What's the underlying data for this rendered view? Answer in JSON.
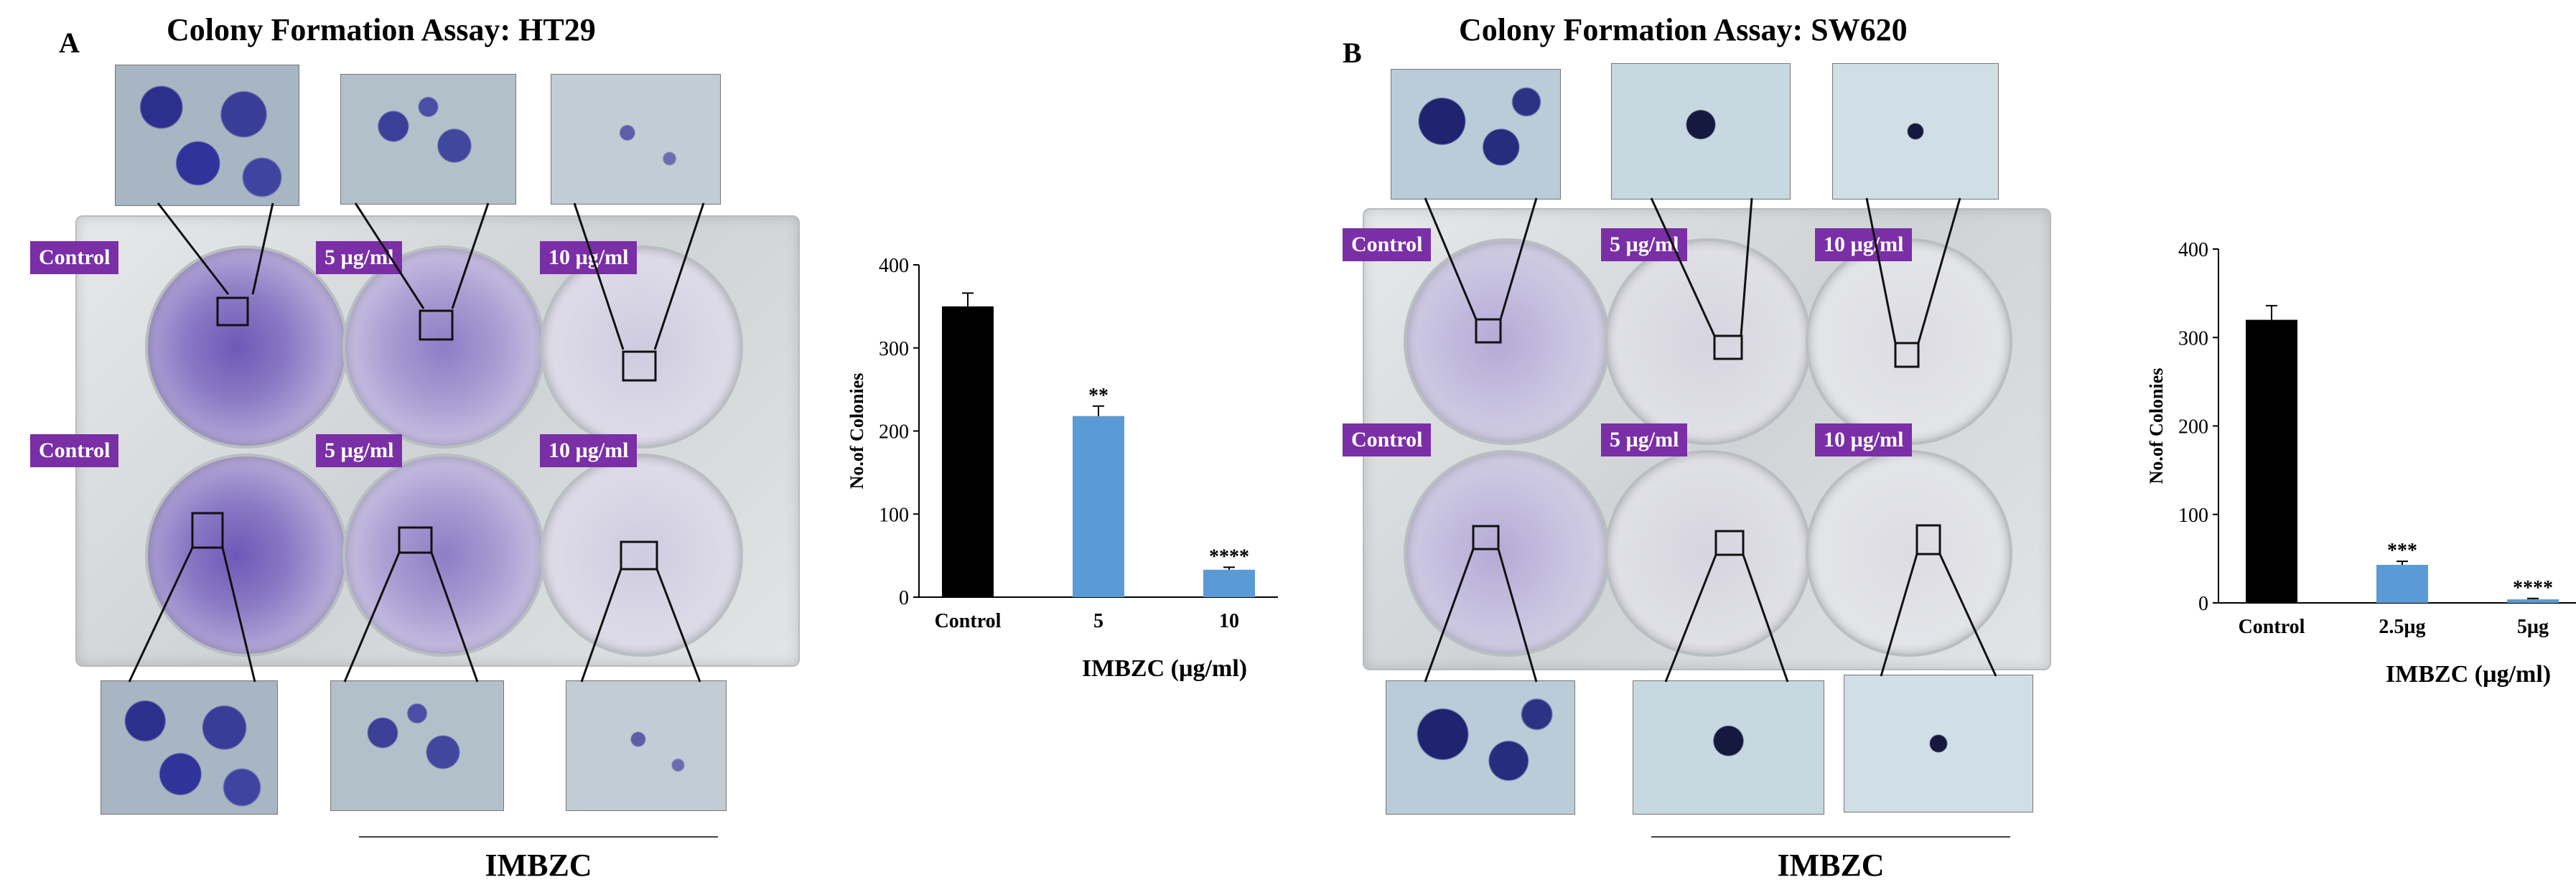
{
  "panels": [
    {
      "letter": "A",
      "title": "Colony Formation Assay: HT29",
      "plate_labels": [
        [
          "Control",
          "5 µg/ml",
          "10 µg/ml"
        ],
        [
          "Control",
          "5 µg/ml",
          "10 µg/ml"
        ]
      ],
      "group_label": "IMBZC"
    },
    {
      "letter": "B",
      "title": "Colony Formation Assay: SW620",
      "plate_labels": [
        [
          "Control",
          "5 µg/ml",
          "10 µg/ml"
        ],
        [
          "Control",
          "5 µg/ml",
          "10 µg/ml"
        ]
      ],
      "group_label": "IMBZC"
    }
  ],
  "chart_data": [
    {
      "type": "bar",
      "title": "",
      "categories": [
        "Control",
        "5",
        "10"
      ],
      "values": [
        350,
        218,
        33
      ],
      "errors": [
        16,
        12,
        3
      ],
      "significance": [
        "",
        "**",
        "****"
      ],
      "bar_colors": [
        "#000000",
        "#5b9bd5",
        "#5b9bd5"
      ],
      "xlabel": "IMBZC (µg/ml)",
      "ylabel": "No.of Colonies",
      "ylim": [
        0,
        400
      ],
      "yticks": [
        0,
        100,
        200,
        300,
        400
      ]
    },
    {
      "type": "bar",
      "title": "",
      "categories": [
        "Control",
        "2.5µg",
        "5µg"
      ],
      "values": [
        320,
        43,
        4
      ],
      "errors": [
        16,
        4,
        1
      ],
      "significance": [
        "",
        "***",
        "****"
      ],
      "bar_colors": [
        "#000000",
        "#5b9bd5",
        "#5b9bd5"
      ],
      "xlabel": "IMBZC (µg/ml)",
      "ylabel": "No.of Colonies",
      "ylim": [
        0,
        400
      ],
      "yticks": [
        0,
        100,
        200,
        300,
        400
      ]
    }
  ]
}
